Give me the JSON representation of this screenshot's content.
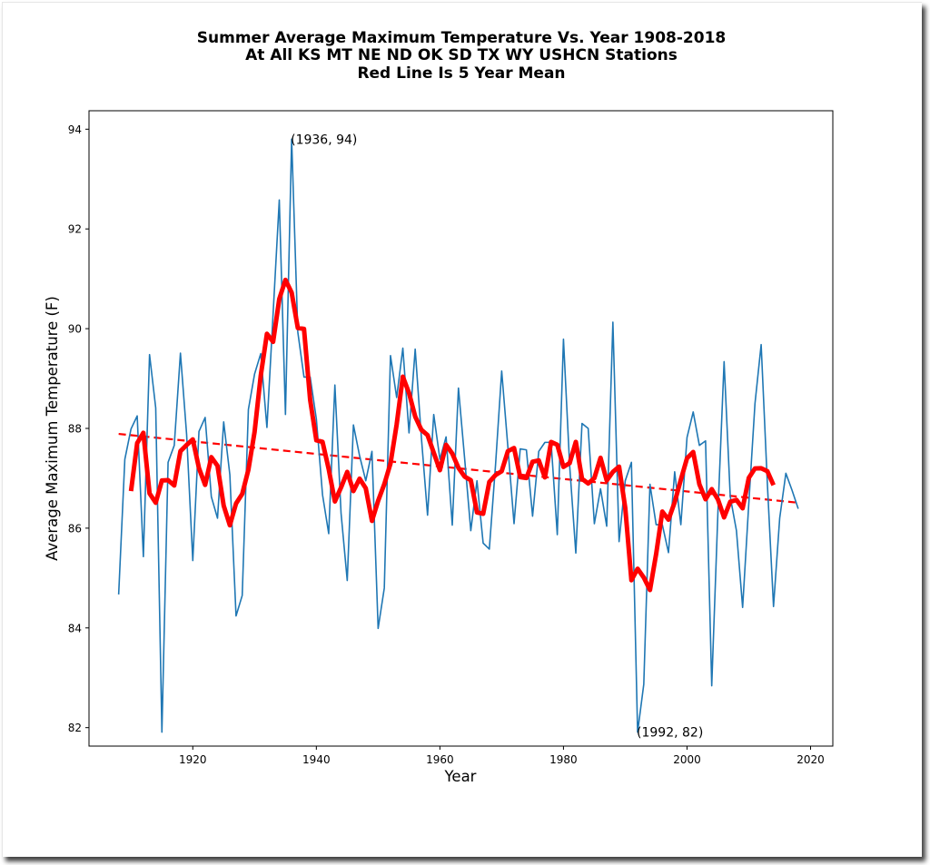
{
  "chart_data": {
    "type": "line",
    "title_lines": [
      "Summer Average Maximum Temperature Vs. Year 1908-2018",
      "At All KS MT NE ND OK SD TX WY USHCN Stations",
      "Red Line Is 5 Year Mean"
    ],
    "xlabel": "Year",
    "ylabel": "Average Maximum Temperature (F)",
    "xlim": [
      1903.2,
      2023.6
    ],
    "ylim": [
      81.63,
      94.37
    ],
    "x_ticks": [
      1920,
      1940,
      1960,
      1980,
      2000,
      2020
    ],
    "y_ticks": [
      82,
      84,
      86,
      88,
      90,
      92,
      94
    ],
    "grid": false,
    "legend": "none",
    "x_start": 1908,
    "series": [
      {
        "name": "Yearly summer average max temperature",
        "color": "#1f77b4",
        "style": "solid-thin",
        "values": [
          84.67,
          87.38,
          87.99,
          88.25,
          85.43,
          89.48,
          88.41,
          81.91,
          87.32,
          87.66,
          89.51,
          87.88,
          85.35,
          87.94,
          88.22,
          86.63,
          86.2,
          88.13,
          87.07,
          84.24,
          84.65,
          88.38,
          89.09,
          89.5,
          88.02,
          90.3,
          92.58,
          88.28,
          93.8,
          89.93,
          89.03,
          89.03,
          88.19,
          86.67,
          85.89,
          88.87,
          86.3,
          84.95,
          88.07,
          87.45,
          86.95,
          87.54,
          83.99,
          84.8,
          89.46,
          88.62,
          89.61,
          87.91,
          89.59,
          87.82,
          86.26,
          88.28,
          87.38,
          87.83,
          86.06,
          88.81,
          87.4,
          85.95,
          86.95,
          85.7,
          85.58,
          87.26,
          89.15,
          87.63,
          86.09,
          87.59,
          87.57,
          86.24,
          87.54,
          87.72,
          87.72,
          85.87,
          89.79,
          87.26,
          85.5,
          88.1,
          88.0,
          86.09,
          86.79,
          86.04,
          90.13,
          85.73,
          86.95,
          87.32,
          81.91,
          82.87,
          86.88,
          86.07,
          86.07,
          85.51,
          87.13,
          86.07,
          87.82,
          88.33,
          87.66,
          87.75,
          82.84,
          86.32,
          89.34,
          86.63,
          85.95,
          84.41,
          86.5,
          88.5,
          89.68,
          86.9,
          84.43,
          86.2,
          87.1,
          86.76,
          86.39
        ]
      },
      {
        "name": "5 Year Mean",
        "color": "#ff0000",
        "style": "solid-thick",
        "window": 5,
        "centered": true
      },
      {
        "name": "Linear trend",
        "color": "#ff0000",
        "style": "dashed",
        "x": [
          1908,
          2018
        ],
        "values": [
          87.89,
          86.51
        ]
      }
    ],
    "annotations": [
      {
        "x": 1936,
        "y": 94,
        "text": "(1936, 94)",
        "anchor_y": 93.8
      },
      {
        "x": 1992,
        "y": 82,
        "text": "(1992, 82)",
        "anchor_y": 81.91
      }
    ]
  }
}
